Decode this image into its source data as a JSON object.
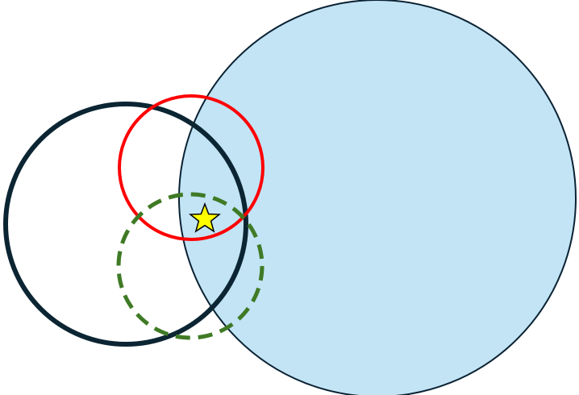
{
  "diagram": {
    "shapes": [
      {
        "name": "large-blue-circle",
        "kind": "filled-circle",
        "fill": "#c2e4f5",
        "stroke": "#0a2233"
      },
      {
        "name": "dark-navy-circle",
        "kind": "outline-circle",
        "stroke": "#0c2533",
        "line_style": "solid-thick"
      },
      {
        "name": "red-circle",
        "kind": "outline-circle",
        "stroke": "#ff0000",
        "line_style": "solid"
      },
      {
        "name": "green-dashed-circle",
        "kind": "outline-circle",
        "stroke": "#3f7a25",
        "line_style": "dashed"
      },
      {
        "name": "star-icon",
        "kind": "star",
        "fill": "#ffff00",
        "stroke": "#000000"
      }
    ]
  }
}
